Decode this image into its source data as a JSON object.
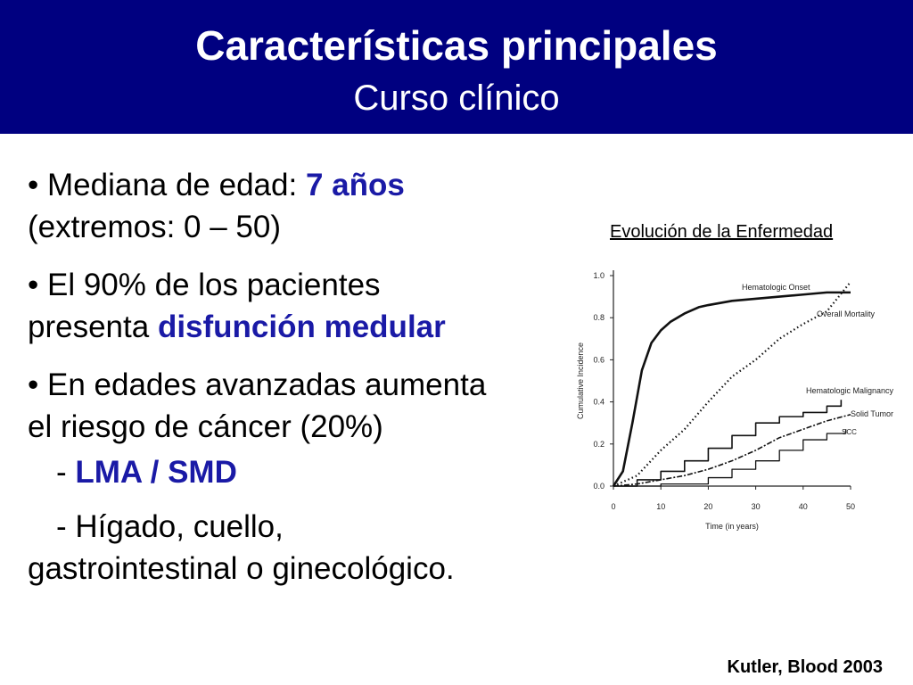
{
  "header": {
    "title": "Características principales",
    "subtitle": "Curso clínico"
  },
  "bullets": [
    {
      "bullet": "•",
      "prefix": " Mediana de edad: ",
      "highlight": "7 años",
      "line2": "(extremos: 0 – 50)"
    },
    {
      "bullet": "•",
      "prefix": " El 90% de los pacientes",
      "line2_prefix": "presenta ",
      "highlight": "disfunción medular"
    },
    {
      "bullet": "•",
      "prefix": " En edades avanzadas aumenta",
      "line2": "el riesgo de cáncer (20%)"
    }
  ],
  "subitems": [
    {
      "dash": "- ",
      "highlight": "LMA / SMD"
    },
    {
      "dash": "- ",
      "text": "Hígado, cuello,",
      "line2": "gastrointestinal o ginecológico."
    }
  ],
  "chart_caption": "Evolución de la Enfermedad",
  "citation": "Kutler, Blood 2003",
  "chart_data": {
    "type": "line",
    "xlabel": "Time (in years)",
    "ylabel": "Cumulative Incidence",
    "xlim": [
      0,
      50
    ],
    "ylim": [
      0,
      1.0
    ],
    "xticks": [
      0,
      10,
      20,
      30,
      40,
      50
    ],
    "yticks": [
      0.0,
      0.2,
      0.4,
      0.6,
      0.8,
      1.0
    ],
    "grid": false,
    "series": [
      {
        "name": "Hematologic Onset",
        "style": "solid",
        "x": [
          0,
          2,
          4,
          6,
          8,
          10,
          12,
          15,
          18,
          20,
          25,
          30,
          35,
          40,
          45,
          50
        ],
        "y": [
          0,
          0.07,
          0.3,
          0.55,
          0.68,
          0.74,
          0.78,
          0.82,
          0.85,
          0.86,
          0.88,
          0.89,
          0.9,
          0.91,
          0.92,
          0.92
        ]
      },
      {
        "name": "Overall Mortality",
        "style": "dotted",
        "x": [
          0,
          5,
          10,
          15,
          20,
          25,
          30,
          35,
          40,
          45,
          50
        ],
        "y": [
          0,
          0.05,
          0.17,
          0.27,
          0.4,
          0.52,
          0.6,
          0.7,
          0.77,
          0.83,
          0.97
        ]
      },
      {
        "name": "Hematologic Malignancy",
        "style": "solid",
        "x": [
          0,
          5,
          10,
          15,
          20,
          25,
          30,
          35,
          40,
          45,
          48
        ],
        "y": [
          0,
          0.03,
          0.07,
          0.12,
          0.18,
          0.24,
          0.3,
          0.33,
          0.35,
          0.38,
          0.41
        ]
      },
      {
        "name": "Solid Tumor",
        "style": "dash-dot",
        "x": [
          0,
          5,
          10,
          15,
          20,
          25,
          30,
          35,
          40,
          45,
          50
        ],
        "y": [
          0,
          0.01,
          0.03,
          0.05,
          0.08,
          0.12,
          0.17,
          0.23,
          0.27,
          0.31,
          0.34
        ]
      },
      {
        "name": "SCC",
        "style": "solid",
        "x": [
          0,
          10,
          20,
          25,
          30,
          35,
          40,
          45,
          49
        ],
        "y": [
          0,
          0.01,
          0.04,
          0.08,
          0.12,
          0.17,
          0.22,
          0.25,
          0.27
        ]
      }
    ]
  }
}
